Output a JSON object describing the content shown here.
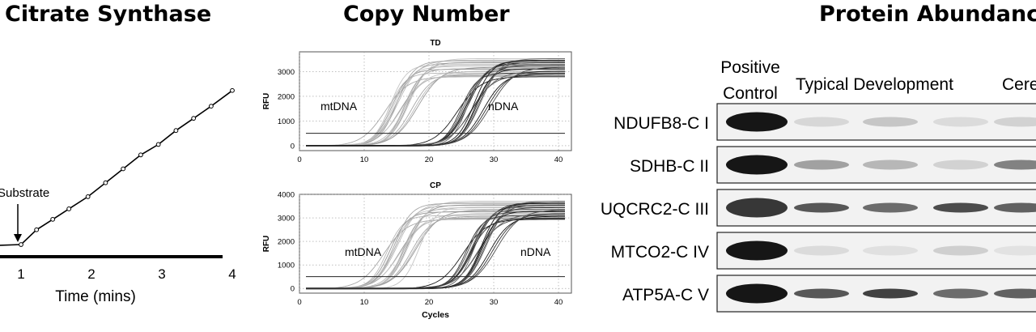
{
  "panels": {
    "citrate_title": "Citrate Synthase",
    "copy_title": "Copy Number",
    "protein_title": "Protein Abundance"
  },
  "chart_data": [
    {
      "type": "line",
      "title": "Citrate Synthase",
      "xlabel": "Time (mins)",
      "ylabel": "",
      "xlim": [
        0.3,
        4.0
      ],
      "ylim": [
        0,
        10
      ],
      "x_ticks": [
        "1",
        "2",
        "3",
        "4"
      ],
      "annotation": "Substrate",
      "annotation_x": 1,
      "series": [
        {
          "values": [
            {
              "x": 0.3,
              "y": 0.55
            },
            {
              "x": 0.65,
              "y": 0.6
            },
            {
              "x": 1.0,
              "y": 0.65
            },
            {
              "x": 1.22,
              "y": 1.5
            },
            {
              "x": 1.45,
              "y": 2.1
            },
            {
              "x": 1.68,
              "y": 2.7
            },
            {
              "x": 1.95,
              "y": 3.4
            },
            {
              "x": 2.2,
              "y": 4.2
            },
            {
              "x": 2.45,
              "y": 5.0
            },
            {
              "x": 2.7,
              "y": 5.8
            },
            {
              "x": 2.95,
              "y": 6.4
            },
            {
              "x": 3.2,
              "y": 7.2
            },
            {
              "x": 3.45,
              "y": 7.9
            },
            {
              "x": 3.7,
              "y": 8.6
            },
            {
              "x": 4.0,
              "y": 9.5
            }
          ]
        }
      ]
    },
    {
      "type": "line",
      "title": "TD",
      "xlabel": "",
      "ylabel": "RFU",
      "xlim": [
        0,
        42
      ],
      "ylim": [
        -200,
        3800
      ],
      "x_ticks": [
        0,
        10,
        20,
        30,
        40
      ],
      "y_ticks": [
        0,
        1000,
        2000,
        3000
      ],
      "threshold": 500,
      "grid": true,
      "labels": [
        "mtDNA",
        "nDNA"
      ],
      "groups": [
        {
          "label": "mtDNA",
          "ct": [
            13.2,
            13.8,
            14.2,
            14.5,
            14.9,
            15.2,
            15.5,
            15.8,
            16.1,
            16.4,
            16.7,
            17.0,
            17.3,
            17.8,
            18.3,
            14.0,
            15.0,
            16.0
          ]
        },
        {
          "label": "nDNA",
          "ct": [
            24.4,
            24.9,
            25.3,
            25.6,
            25.9,
            26.2,
            26.5,
            26.8,
            27.1,
            27.4,
            27.7,
            28.0,
            28.4,
            28.9,
            29.5,
            26.0,
            27.0
          ]
        }
      ]
    },
    {
      "type": "line",
      "title": "CP",
      "xlabel": "Cycles",
      "ylabel": "RFU",
      "xlim": [
        0,
        42
      ],
      "ylim": [
        -200,
        4000
      ],
      "x_ticks": [
        0,
        10,
        20,
        30,
        40
      ],
      "y_ticks": [
        0,
        1000,
        2000,
        3000,
        4000
      ],
      "threshold": 500,
      "grid": true,
      "labels": [
        "mtDNA",
        "nDNA"
      ],
      "groups": [
        {
          "label": "mtDNA",
          "ct": [
            13.0,
            13.5,
            14.0,
            14.4,
            14.8,
            15.1,
            15.4,
            15.7,
            16.0,
            16.3,
            16.6,
            16.9,
            17.2,
            17.6,
            18.0,
            18.5,
            14.6,
            15.9
          ]
        },
        {
          "label": "nDNA",
          "ct": [
            25.2,
            25.7,
            26.1,
            26.5,
            26.8,
            27.1,
            27.4,
            27.7,
            28.0,
            28.3,
            28.6,
            28.9,
            29.3,
            29.8,
            30.4,
            27.0,
            28.1,
            26.4
          ]
        }
      ]
    },
    {
      "type": "heatmap",
      "title": "Protein Abundance",
      "column_groups": [
        "Positive Control",
        "Typical Development",
        "Cere"
      ],
      "positive_control_line1": "Positive",
      "positive_control_line2": "Control",
      "rows": [
        {
          "label": "NDUFB8-C I",
          "intensity": [
            1.0,
            0.1,
            0.18,
            0.08,
            0.12
          ]
        },
        {
          "label": "SDHB-C II",
          "intensity": [
            1.0,
            0.35,
            0.25,
            0.12,
            0.5
          ]
        },
        {
          "label": "UQCRC2-C III",
          "intensity": [
            0.85,
            0.7,
            0.6,
            0.75,
            0.65
          ]
        },
        {
          "label": "MTCO2-C IV",
          "intensity": [
            1.0,
            0.08,
            0.06,
            0.14,
            0.05
          ]
        },
        {
          "label": "ATP5A-C V",
          "intensity": [
            1.0,
            0.7,
            0.8,
            0.6,
            0.65
          ]
        }
      ]
    }
  ]
}
